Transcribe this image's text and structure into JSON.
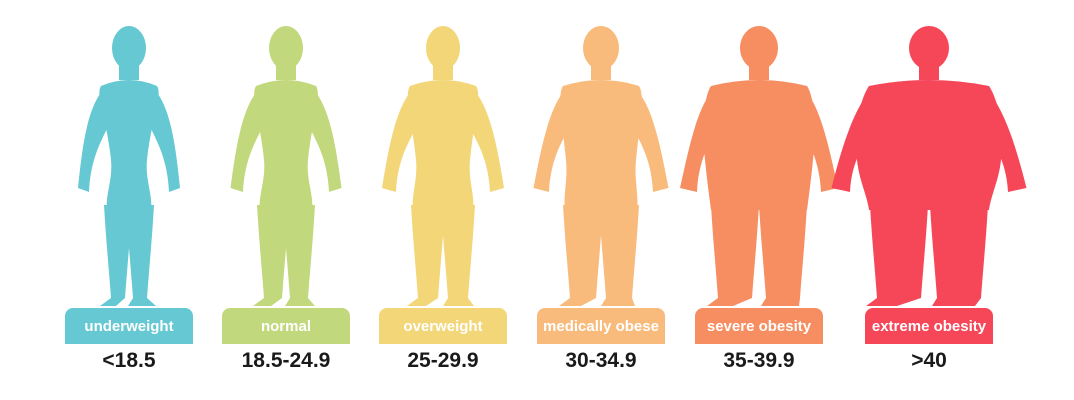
{
  "categories": [
    {
      "label": "underweight",
      "range": "<18.5",
      "color": "#65c8d2"
    },
    {
      "label": "normal",
      "range": "18.5-24.9",
      "color": "#c2d87d"
    },
    {
      "label": "overweight",
      "range": "25-29.9",
      "color": "#f2d677"
    },
    {
      "label": "medically obese",
      "range": "30-34.9",
      "color": "#f8bb7c"
    },
    {
      "label": "severe obesity",
      "range": "35-39.9",
      "color": "#f78e61"
    },
    {
      "label": "extreme obesity",
      "range": ">40",
      "color": "#f64759"
    }
  ]
}
